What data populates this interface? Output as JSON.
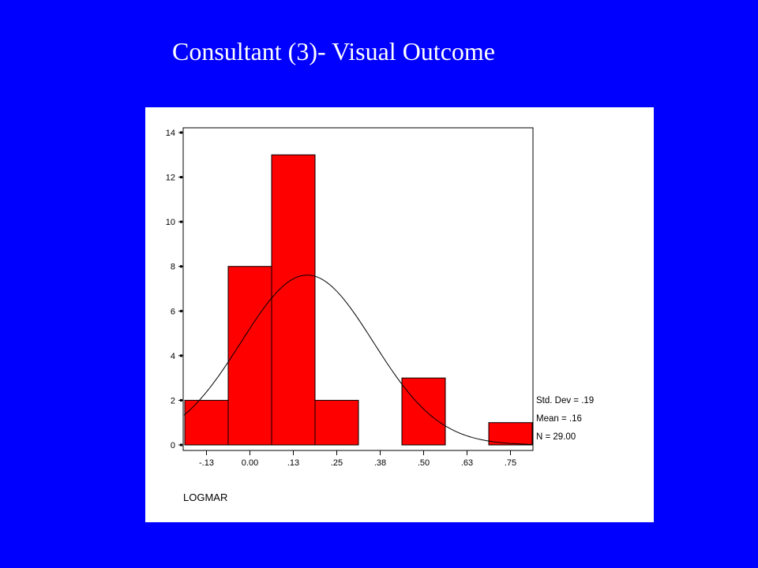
{
  "slide": {
    "title": "Consultant (3)- Visual Outcome",
    "background_color": "#0000ff"
  },
  "chart_data": {
    "type": "bar",
    "title": "",
    "xlabel": "LOGMAR",
    "ylabel": "",
    "categories": [
      "-.13",
      "0.00",
      ".13",
      ".25",
      ".38",
      ".50",
      ".63",
      ".75"
    ],
    "values": [
      2,
      8,
      13,
      2,
      0,
      3,
      0,
      1
    ],
    "ylim": [
      0,
      14
    ],
    "yticks": [
      0,
      2,
      4,
      6,
      8,
      10,
      12,
      14
    ],
    "bar_color": "#ff0000",
    "normal_curve": {
      "mean": 0.16,
      "std_dev": 0.19,
      "n": 29,
      "bin_width": 0.125
    },
    "stats": [
      {
        "label": "Std. Dev = .19"
      },
      {
        "label": "Mean = .16"
      },
      {
        "label": "N = 29.00"
      }
    ],
    "grid": false
  }
}
